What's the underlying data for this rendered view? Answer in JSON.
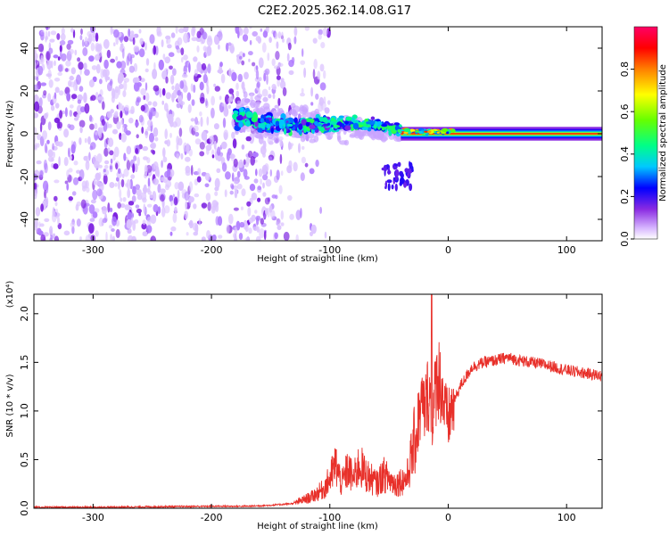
{
  "title": "C2E2.2025.362.14.08.G17",
  "chart_data": [
    {
      "type": "heatmap",
      "name": "spectrogram",
      "xlabel": "Height of straight line (km)",
      "ylabel": "Frequency (Hz)",
      "xlim": [
        -350,
        130
      ],
      "ylim": [
        -50,
        50
      ],
      "xticks": [
        -300,
        -200,
        -100,
        0,
        100
      ],
      "yticks": [
        -40,
        -20,
        0,
        20,
        40
      ],
      "colorbar": {
        "label": "Normalized spectral amplitude",
        "range": [
          0,
          1
        ],
        "ticks": [
          0.0,
          0.2,
          0.4,
          0.6,
          0.8
        ],
        "tick_labels": [
          "0.0",
          "0.2",
          "0.4",
          "0.6",
          "0.8"
        ],
        "colors": [
          "#ffffff",
          "#d8b8ff",
          "#8a2be2",
          "#0000ff",
          "#00c8ff",
          "#00ff88",
          "#66ff00",
          "#ffff00",
          "#ff8000",
          "#ff0000",
          "#ff0066"
        ]
      },
      "regions": [
        {
          "description": "scattered noise",
          "x_range": [
            -350,
            -140
          ],
          "freq_range": [
            -50,
            50
          ],
          "amplitude": 0.05
        },
        {
          "description": "signal onset",
          "x_range": [
            -180,
            -40
          ],
          "freq_range": [
            -12,
            12
          ],
          "amplitude": 0.3
        },
        {
          "description": "stable carrier line",
          "x_range": [
            -40,
            130
          ],
          "freq_range": [
            -1,
            1
          ],
          "amplitude": 0.9
        }
      ]
    },
    {
      "type": "line",
      "name": "snr",
      "xlabel": "Height of straight line (km)",
      "ylabel": "SNR (10 * v/v)",
      "y_scale_label": "(x10⁴)",
      "xlim": [
        -350,
        130
      ],
      "ylim": [
        0,
        2.2
      ],
      "xticks": [
        -300,
        -200,
        -100,
        0,
        100
      ],
      "yticks": [
        0.0,
        0.5,
        1.0,
        1.5,
        2.0
      ],
      "ytick_labels": [
        "0.0",
        "0.5",
        "1.0",
        "1.5",
        "2.0"
      ],
      "color": "#e8302a",
      "series": [
        {
          "name": "SNR",
          "x": [
            -350,
            -300,
            -250,
            -200,
            -170,
            -150,
            -130,
            -115,
            -105,
            -100,
            -95,
            -90,
            -85,
            -80,
            -75,
            -70,
            -65,
            -60,
            -55,
            -50,
            -45,
            -40,
            -35,
            -30,
            -25,
            -22,
            -20,
            -17,
            -15,
            -13,
            -11,
            -9,
            -7,
            -5,
            -3,
            0,
            5,
            10,
            15,
            20,
            30,
            40,
            50,
            60,
            70,
            80,
            90,
            100,
            110,
            120,
            130
          ],
          "y": [
            0.01,
            0.01,
            0.015,
            0.02,
            0.02,
            0.03,
            0.05,
            0.12,
            0.2,
            0.3,
            0.45,
            0.25,
            0.4,
            0.3,
            0.45,
            0.35,
            0.3,
            0.25,
            0.35,
            0.3,
            0.25,
            0.28,
            0.3,
            0.6,
            0.9,
            1.1,
            1.0,
            1.2,
            1.1,
            0.9,
            1.2,
            1.4,
            1.3,
            1.2,
            1.0,
            0.9,
            1.1,
            1.25,
            1.35,
            1.45,
            1.5,
            1.52,
            1.55,
            1.52,
            1.5,
            1.48,
            1.45,
            1.42,
            1.4,
            1.38,
            1.36
          ]
        }
      ],
      "spike": {
        "x": -14,
        "y": 2.2
      }
    }
  ]
}
